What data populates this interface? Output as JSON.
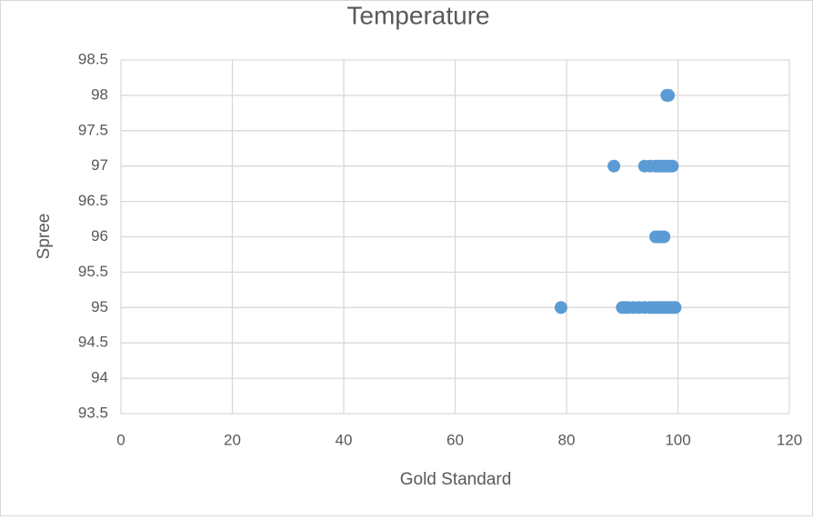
{
  "chart_data": {
    "type": "scatter",
    "title": "Temperature",
    "x_label": "Gold Standard",
    "y_label": "Spree",
    "x": [
      98,
      98.3,
      88.5,
      94,
      95,
      96,
      96.5,
      97,
      97.5,
      98,
      98.5,
      99,
      96,
      96.5,
      97,
      97.5,
      79,
      90,
      90.5,
      91,
      92,
      93,
      94,
      95,
      95.5,
      96,
      96.5,
      97,
      97.5,
      98,
      98.5,
      99,
      99.5
    ],
    "values": [
      98,
      98,
      97,
      97,
      97,
      97,
      97,
      97,
      97,
      97,
      97,
      97,
      96,
      96,
      96,
      96,
      95,
      95,
      95,
      95,
      95,
      95,
      95,
      95,
      95,
      95,
      95,
      95,
      95,
      95,
      95,
      95,
      95
    ],
    "color": "#5b9bd5",
    "xlim": [
      0,
      120
    ],
    "xticks": [
      0,
      20,
      40,
      60,
      80,
      100,
      120
    ],
    "ylim": [
      93.5,
      98.5
    ],
    "yticks": [
      93.5,
      94,
      94.5,
      95,
      95.5,
      96,
      96.5,
      97,
      97.5,
      98,
      98.5
    ],
    "grid": true
  }
}
